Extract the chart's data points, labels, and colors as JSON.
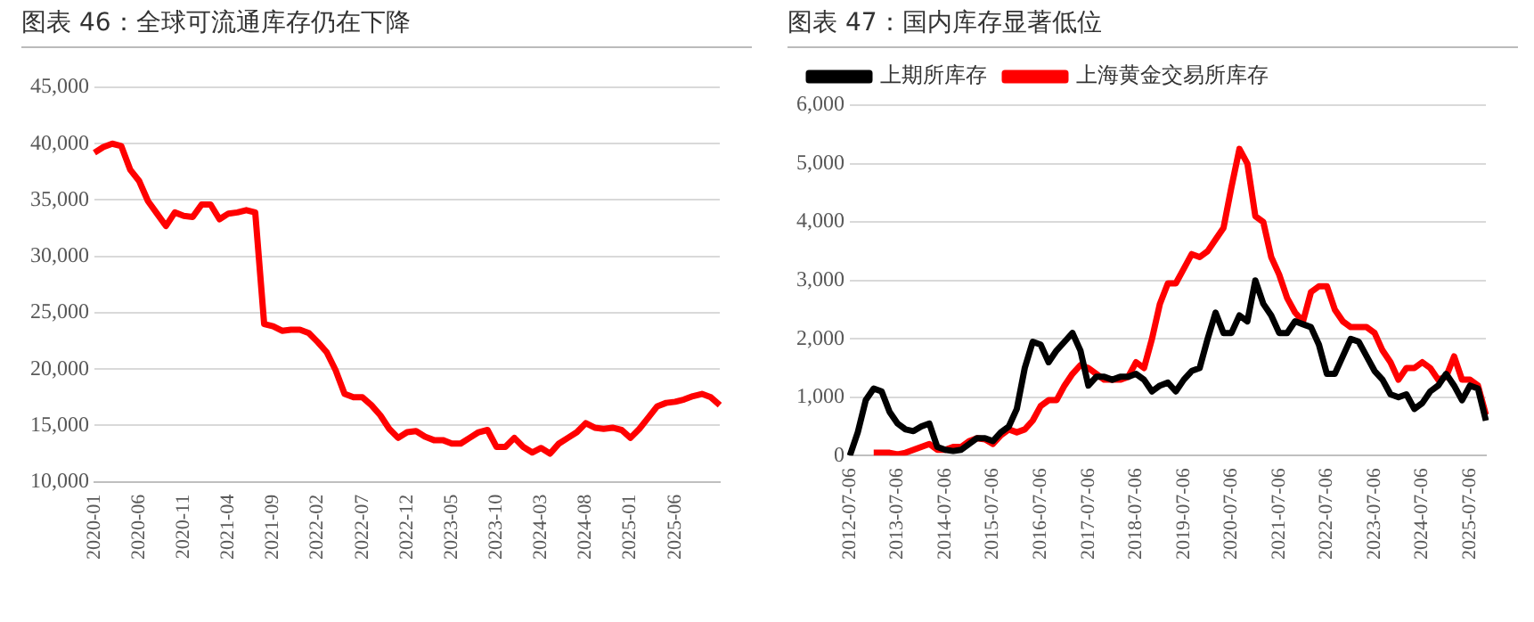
{
  "chart_data": [
    {
      "type": "line",
      "title": "图表 46：全球可流通库存仍在下降",
      "categories": [
        "2020-01",
        null,
        null,
        null,
        null,
        "2020-06",
        null,
        null,
        null,
        null,
        "2020-11",
        null,
        null,
        null,
        null,
        "2021-04",
        null,
        null,
        null,
        null,
        "2021-09",
        null,
        null,
        null,
        null,
        "2022-02",
        null,
        null,
        null,
        null,
        "2022-07",
        null,
        null,
        null,
        null,
        "2022-12",
        null,
        null,
        null,
        null,
        "2023-05",
        null,
        null,
        null,
        null,
        "2023-10",
        null,
        null,
        null,
        null,
        "2024-03",
        null,
        null,
        null,
        null,
        "2024-08",
        null,
        null,
        null,
        null,
        "2025-01",
        null,
        null,
        null,
        null,
        "2025-06",
        null,
        null,
        null,
        null,
        null
      ],
      "series": [
        {
          "color": "#ff0000",
          "values": [
            39200,
            39700,
            40000,
            39800,
            37700,
            36700,
            34900,
            33800,
            32700,
            33900,
            33600,
            33500,
            34600,
            34600,
            33300,
            33800,
            33900,
            34100,
            33900,
            24000,
            23800,
            23400,
            23500,
            23500,
            23200,
            22400,
            21500,
            19900,
            17800,
            17500,
            17500,
            16800,
            15900,
            14700,
            13900,
            14400,
            14500,
            14000,
            13700,
            13700,
            13400,
            13400,
            13900,
            14400,
            14600,
            13100,
            13100,
            13900,
            13100,
            12600,
            13000,
            12500,
            13400,
            13900,
            14400,
            15200,
            14800,
            14700,
            14800,
            14600,
            13900,
            14700,
            15700,
            16700,
            17000,
            17100,
            17300,
            17600,
            17800,
            17500,
            16800
          ]
        }
      ],
      "ylim": [
        10000,
        45000
      ],
      "yticks": [
        {
          "value": 10000,
          "label": "10,000"
        },
        {
          "value": 15000,
          "label": "15,000"
        },
        {
          "value": 20000,
          "label": "20,000"
        },
        {
          "value": 25000,
          "label": "25,000"
        },
        {
          "value": 30000,
          "label": "30,000"
        },
        {
          "value": 35000,
          "label": "35,000"
        },
        {
          "value": 40000,
          "label": "40,000"
        },
        {
          "value": 45000,
          "label": "45,000"
        }
      ],
      "grid": "y",
      "marker": "none"
    },
    {
      "type": "line",
      "title": "图表 47：国内库存显著低位",
      "categories": [
        "2012-07-06",
        null,
        null,
        null,
        null,
        null,
        "2013-07-06",
        null,
        null,
        null,
        null,
        null,
        "2014-07-06",
        null,
        null,
        null,
        null,
        null,
        "2015-07-06",
        null,
        null,
        null,
        null,
        null,
        "2016-07-06",
        null,
        null,
        null,
        null,
        null,
        "2017-07-06",
        null,
        null,
        null,
        null,
        null,
        "2018-07-06",
        null,
        null,
        null,
        null,
        null,
        "2019-07-06",
        null,
        null,
        null,
        null,
        null,
        "2020-07-06",
        null,
        null,
        null,
        null,
        null,
        "2021-07-06",
        null,
        null,
        null,
        null,
        null,
        "2022-07-06",
        null,
        null,
        null,
        null,
        null,
        "2023-07-06",
        null,
        null,
        null,
        null,
        null,
        "2024-07-06",
        null,
        null,
        null,
        null,
        null,
        "2025-07-06",
        null,
        null
      ],
      "series": [
        {
          "name": "上期所库存",
          "color": "#000000",
          "values": [
            0,
            400,
            950,
            1150,
            1100,
            750,
            550,
            450,
            420,
            500,
            550,
            150,
            100,
            80,
            100,
            200,
            300,
            300,
            250,
            400,
            500,
            800,
            1500,
            1950,
            1900,
            1600,
            1800,
            1950,
            2100,
            1800,
            1200,
            1350,
            1350,
            1300,
            1350,
            1350,
            1400,
            1300,
            1100,
            1200,
            1250,
            1100,
            1300,
            1450,
            1500,
            2000,
            2450,
            2100,
            2100,
            2400,
            2300,
            3000,
            2600,
            2400,
            2100,
            2100,
            2300,
            2250,
            2200,
            1900,
            1400,
            1400,
            1700,
            2000,
            1950,
            1700,
            1450,
            1300,
            1050,
            1000,
            1050,
            800,
            900,
            1100,
            1200,
            1400,
            1200,
            950,
            1200,
            1150,
            600
          ]
        },
        {
          "name": "上海黄金交易所库存",
          "color": "#ff0000",
          "values": [
            null,
            null,
            null,
            50,
            50,
            50,
            20,
            50,
            100,
            150,
            200,
            100,
            100,
            150,
            150,
            250,
            300,
            280,
            200,
            350,
            450,
            400,
            450,
            600,
            850,
            950,
            950,
            1200,
            1400,
            1550,
            1500,
            1400,
            1300,
            1300,
            1300,
            1350,
            1600,
            1500,
            2000,
            2600,
            2950,
            2950,
            3200,
            3450,
            3400,
            3500,
            3700,
            3900,
            4600,
            5250,
            5000,
            4100,
            4000,
            3400,
            3100,
            2700,
            2450,
            2300,
            2800,
            2900,
            2900,
            2500,
            2300,
            2200,
            2200,
            2200,
            2100,
            1800,
            1600,
            1300,
            1500,
            1500,
            1600,
            1500,
            1300,
            1350,
            1700,
            1300,
            1300,
            1200,
            700
          ]
        }
      ],
      "ylim": [
        0,
        6000
      ],
      "yticks": [
        0,
        {
          "value": 1000,
          "label": "1,000"
        },
        {
          "value": 2000,
          "label": "2,000"
        },
        {
          "value": 3000,
          "label": "3,000"
        },
        {
          "value": 4000,
          "label": "4,000"
        },
        {
          "value": 5000,
          "label": "5,000"
        },
        {
          "value": 6000,
          "label": "6,000"
        }
      ],
      "grid": "y",
      "legend": "top",
      "marker": "none"
    }
  ]
}
